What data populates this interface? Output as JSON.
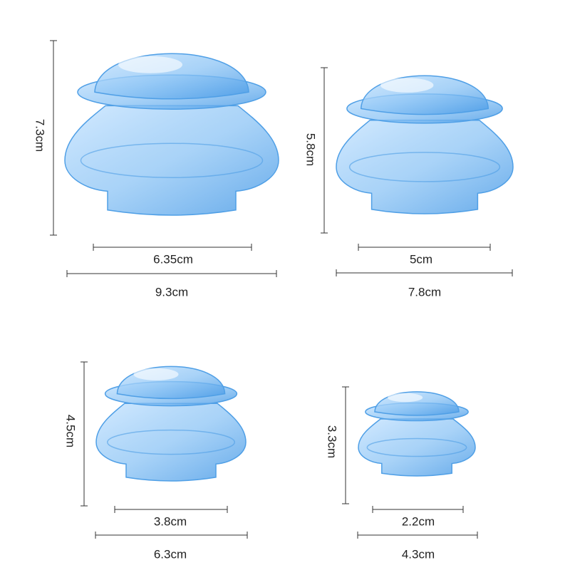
{
  "cups": [
    {
      "height": "7.3cm",
      "top_width": "6.35cm",
      "base_width": "9.3cm"
    },
    {
      "height": "5.8cm",
      "top_width": "5cm",
      "base_width": "7.8cm"
    },
    {
      "height": "4.5cm",
      "top_width": "3.8cm",
      "base_width": "6.3cm"
    },
    {
      "height": "3.3cm",
      "top_width": "2.2cm",
      "base_width": "4.3cm"
    }
  ]
}
